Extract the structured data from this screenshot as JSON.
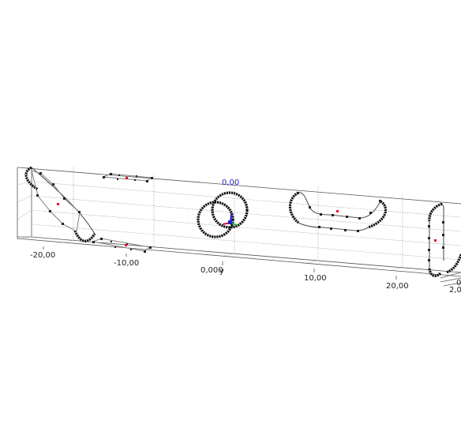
{
  "viewer": {
    "x_axis_ticks": [
      "-20,00",
      "-10,00",
      "0,000",
      "10,00",
      "20,00"
    ],
    "y_axis_tick": "y",
    "z_axis_ticks": [
      "2,0",
      "0"
    ],
    "center_marker_label": "0,00"
  },
  "objects": [
    {
      "name": "tilted-ellipse-left",
      "type": "ellipse"
    },
    {
      "name": "flat-rectangle-top",
      "type": "rectangle"
    },
    {
      "name": "flat-rectangle-bottom",
      "type": "rectangle"
    },
    {
      "name": "interlocked-rings",
      "type": "circles"
    },
    {
      "name": "u-shaped-track",
      "type": "curve"
    },
    {
      "name": "vertical-loop-right",
      "type": "loop"
    }
  ],
  "colors": {
    "background": "#ffffff",
    "grid": "#9a9a9a",
    "curve": "#111111",
    "centroid": "#e0102a",
    "axis_x": "#e0102a",
    "axis_y": "#20b020",
    "axis_z": "#2020e0"
  }
}
